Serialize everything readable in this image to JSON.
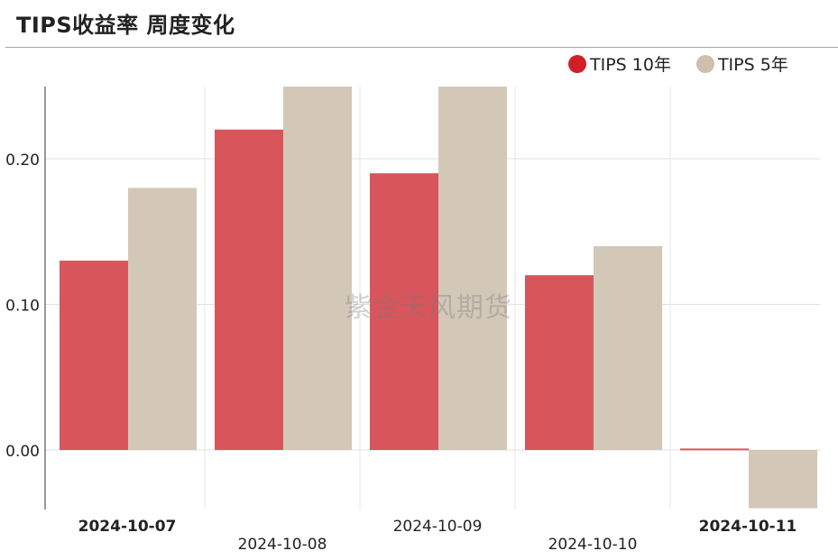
{
  "title": "TIPS收益率 周度变化",
  "watermark": "紫金天风期货",
  "colors": {
    "tips10": "#d9555c",
    "tips5": "#d3c8b8",
    "tips10_dot": "#cf2027",
    "tips5_dot": "#cdbfac"
  },
  "chart_data": {
    "type": "bar",
    "title": "TIPS收益率 周度变化",
    "categories": [
      "2024-10-07",
      "2024-10-08",
      "2024-10-09",
      "2024-10-10",
      "2024-10-11"
    ],
    "series": [
      {
        "name": "TIPS 10年",
        "values": [
          0.13,
          0.22,
          0.19,
          0.12,
          0.001
        ]
      },
      {
        "name": "TIPS 5年",
        "values": [
          0.18,
          0.25,
          0.25,
          0.14,
          -0.04
        ]
      }
    ],
    "y_ticks": [
      "0.00",
      "0.10",
      "0.20"
    ],
    "ylim": [
      -0.04,
      0.25
    ],
    "grid": true,
    "legend": "top-right"
  }
}
